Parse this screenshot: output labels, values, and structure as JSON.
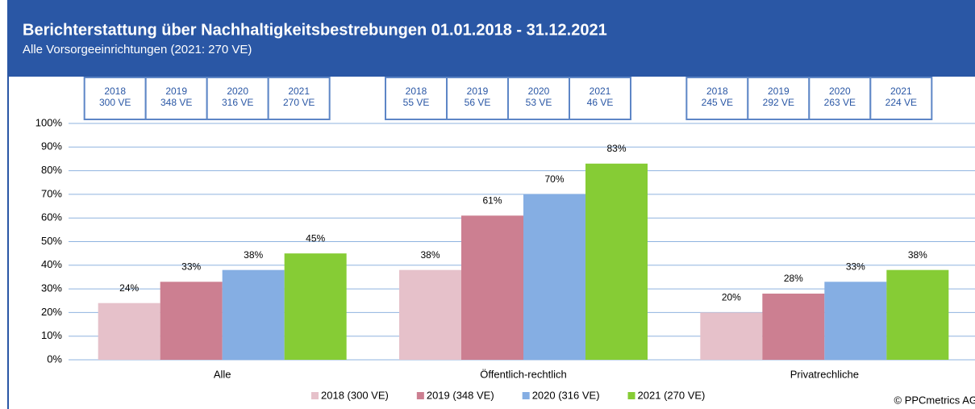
{
  "chart_data": {
    "type": "bar",
    "title": "Berichterstattung über Nachhaltigkeitsbestrebungen 01.01.2018 - 31.12.2021",
    "subtitle": "Alle Vorsorgeeinrichtungen (2021: 270 VE)",
    "categories": [
      "Alle",
      "Öffentlich-rechtlich",
      "Privatrechliche"
    ],
    "series": [
      {
        "name": "2018 (300 VE)",
        "color": "#e6c1ca",
        "values": [
          24,
          38,
          20
        ],
        "value_labels": [
          "24%",
          "38%",
          "20%"
        ]
      },
      {
        "name": "2019 (348 VE)",
        "color": "#cc7f91",
        "values": [
          33,
          61,
          28
        ],
        "value_labels": [
          "33%",
          "61%",
          "28%"
        ]
      },
      {
        "name": "2020 (316 VE)",
        "color": "#85aee3",
        "values": [
          38,
          70,
          33
        ],
        "value_labels": [
          "38%",
          "70%",
          "33%"
        ]
      },
      {
        "name": "2021 (270 VE)",
        "color": "#86cc35",
        "values": [
          45,
          83,
          38
        ],
        "value_labels": [
          "45%",
          "83%",
          "38%"
        ]
      }
    ],
    "info_boxes": [
      [
        {
          "year": "2018",
          "count": "300 VE"
        },
        {
          "year": "2019",
          "count": "348 VE"
        },
        {
          "year": "2020",
          "count": "316 VE"
        },
        {
          "year": "2021",
          "count": "270 VE"
        }
      ],
      [
        {
          "year": "2018",
          "count": "55 VE"
        },
        {
          "year": "2019",
          "count": "56 VE"
        },
        {
          "year": "2020",
          "count": "53 VE"
        },
        {
          "year": "2021",
          "count": "46 VE"
        }
      ],
      [
        {
          "year": "2018",
          "count": "245 VE"
        },
        {
          "year": "2019",
          "count": "292 VE"
        },
        {
          "year": "2020",
          "count": "263 VE"
        },
        {
          "year": "2021",
          "count": "224 VE"
        }
      ]
    ],
    "ylim": [
      0,
      100
    ],
    "yticks": [
      {
        "value": 0,
        "label": "0%"
      },
      {
        "value": 10,
        "label": "10%"
      },
      {
        "value": 20,
        "label": "20%"
      },
      {
        "value": 30,
        "label": "30%"
      },
      {
        "value": 40,
        "label": "40%"
      },
      {
        "value": 50,
        "label": "50%"
      },
      {
        "value": 60,
        "label": "60%"
      },
      {
        "value": 70,
        "label": "70%"
      },
      {
        "value": 80,
        "label": "80%"
      },
      {
        "value": 90,
        "label": "90%"
      },
      {
        "value": 100,
        "label": "100%"
      }
    ],
    "grid": true,
    "legend": "bottom",
    "credit": "© PPCmetrics AG"
  }
}
